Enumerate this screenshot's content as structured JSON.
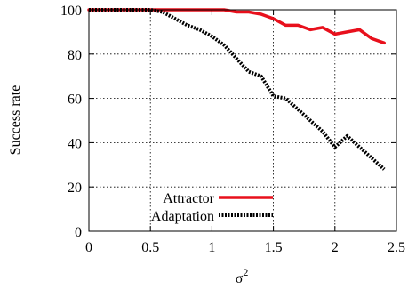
{
  "chart_data": {
    "type": "line",
    "xlabel": "σ",
    "xlabel_superscript": "2",
    "ylabel": "Success rate",
    "xlim": [
      0,
      2.5
    ],
    "ylim": [
      0,
      100
    ],
    "xticks": [
      "0",
      "0.5",
      "1",
      "1.5",
      "2",
      "2.5"
    ],
    "yticks": [
      "0",
      "20",
      "40",
      "60",
      "80",
      "100"
    ],
    "grid": true,
    "legend_position": "bottom-left",
    "series": [
      {
        "name": "Attractor",
        "color": "#e8101c",
        "style": "solid",
        "x": [
          0,
          0.1,
          0.2,
          0.3,
          0.4,
          0.5,
          0.6,
          0.7,
          0.8,
          0.9,
          1.0,
          1.1,
          1.2,
          1.3,
          1.4,
          1.5,
          1.6,
          1.7,
          1.8,
          1.9,
          2.0,
          2.1,
          2.2,
          2.3,
          2.4
        ],
        "y": [
          100,
          100,
          100,
          100,
          100,
          100,
          100,
          100,
          100,
          100,
          100,
          100,
          99,
          99,
          98,
          96,
          93,
          93,
          91,
          92,
          89,
          90,
          91,
          87,
          85
        ]
      },
      {
        "name": "Adaptation",
        "color": "#000000",
        "style": "dotted",
        "x": [
          0,
          0.1,
          0.2,
          0.3,
          0.4,
          0.5,
          0.6,
          0.7,
          0.8,
          0.9,
          1.0,
          1.1,
          1.2,
          1.3,
          1.4,
          1.5,
          1.6,
          1.7,
          1.8,
          1.9,
          2.0,
          2.1,
          2.2,
          2.3,
          2.4
        ],
        "y": [
          100,
          100,
          100,
          100,
          100,
          100,
          99,
          96,
          93,
          91,
          88,
          84,
          78,
          72,
          70,
          61,
          60,
          55,
          50,
          45,
          38,
          43,
          38,
          33,
          28
        ]
      }
    ]
  }
}
